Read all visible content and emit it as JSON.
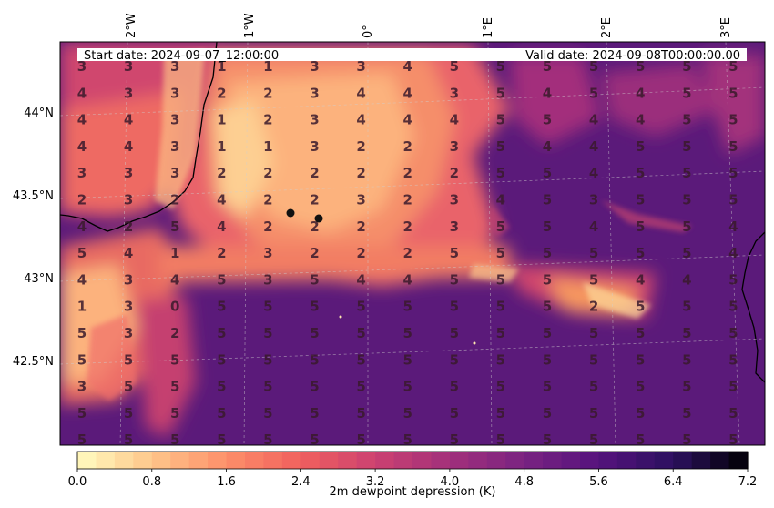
{
  "header": {
    "start_label": "Start date: 2024-09-07_12:00:00",
    "valid_label": "Valid date: 2024-09-08T00:00:00.00"
  },
  "axes": {
    "lon_labels": [
      "2°W",
      "1°W",
      "0°",
      "1°E",
      "2°E",
      "3°E"
    ],
    "lat_labels": [
      "44°N",
      "43.5°N",
      "43°N",
      "42.5°N"
    ]
  },
  "colorbar": {
    "label": "2m dewpoint depression (K)",
    "ticks": [
      "0.0",
      "0.8",
      "1.6",
      "2.4",
      "3.2",
      "4.0",
      "4.8",
      "5.6",
      "6.4",
      "7.2"
    ],
    "colormap": "magma_r",
    "colors": [
      "#fffcc0",
      "#fec68a",
      "#fd8f6a",
      "#f0605d",
      "#cc4171",
      "#a2307b",
      "#7a2382",
      "#55137d",
      "#2c115f",
      "#000004"
    ]
  },
  "grid_values": [
    [
      3,
      3,
      3,
      1,
      1,
      3,
      3,
      4,
      5,
      5,
      5,
      5,
      5,
      5,
      5
    ],
    [
      4,
      3,
      3,
      2,
      2,
      3,
      4,
      4,
      3,
      5,
      4,
      5,
      4,
      5,
      5
    ],
    [
      4,
      4,
      3,
      1,
      2,
      3,
      4,
      4,
      4,
      5,
      5,
      4,
      4,
      5,
      5
    ],
    [
      4,
      4,
      3,
      1,
      1,
      3,
      2,
      2,
      3,
      5,
      4,
      4,
      5,
      5,
      5
    ],
    [
      3,
      3,
      3,
      2,
      2,
      2,
      2,
      2,
      2,
      5,
      5,
      4,
      5,
      5,
      5
    ],
    [
      2,
      3,
      2,
      4,
      2,
      2,
      3,
      2,
      3,
      4,
      5,
      3,
      5,
      5,
      5
    ],
    [
      4,
      2,
      5,
      4,
      2,
      2,
      2,
      2,
      3,
      5,
      5,
      4,
      5,
      5,
      4
    ],
    [
      5,
      4,
      1,
      2,
      3,
      2,
      2,
      2,
      5,
      5,
      5,
      5,
      5,
      5,
      4
    ],
    [
      4,
      3,
      4,
      5,
      3,
      5,
      4,
      4,
      5,
      5,
      5,
      5,
      4,
      4,
      5
    ],
    [
      1,
      3,
      0,
      5,
      5,
      5,
      5,
      5,
      5,
      5,
      5,
      2,
      5,
      5,
      5
    ],
    [
      5,
      3,
      2,
      5,
      5,
      5,
      5,
      5,
      5,
      5,
      5,
      5,
      5,
      5,
      5
    ],
    [
      5,
      5,
      5,
      5,
      5,
      5,
      5,
      5,
      5,
      5,
      5,
      5,
      5,
      5,
      5
    ],
    [
      3,
      5,
      5,
      5,
      5,
      5,
      5,
      5,
      5,
      5,
      5,
      5,
      5,
      5,
      5
    ],
    [
      5,
      5,
      5,
      5,
      5,
      5,
      5,
      5,
      5,
      5,
      5,
      5,
      5,
      5,
      5
    ],
    [
      5,
      5,
      5,
      5,
      5,
      5,
      5,
      5,
      5,
      5,
      5,
      5,
      5,
      5,
      5
    ]
  ]
}
